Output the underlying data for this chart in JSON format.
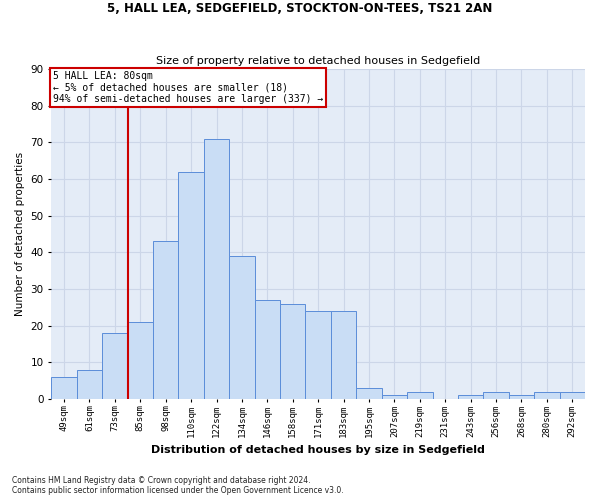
{
  "title1": "5, HALL LEA, SEDGEFIELD, STOCKTON-ON-TEES, TS21 2AN",
  "title2": "Size of property relative to detached houses in Sedgefield",
  "xlabel": "Distribution of detached houses by size in Sedgefield",
  "ylabel": "Number of detached properties",
  "bar_labels": [
    "49sqm",
    "61sqm",
    "73sqm",
    "85sqm",
    "98sqm",
    "110sqm",
    "122sqm",
    "134sqm",
    "146sqm",
    "158sqm",
    "171sqm",
    "183sqm",
    "195sqm",
    "207sqm",
    "219sqm",
    "231sqm",
    "243sqm",
    "256sqm",
    "268sqm",
    "280sqm",
    "292sqm"
  ],
  "bar_values": [
    6,
    8,
    18,
    21,
    43,
    62,
    71,
    39,
    27,
    26,
    24,
    24,
    3,
    1,
    2,
    0,
    1,
    2,
    1,
    2,
    2
  ],
  "bar_color": "#c9ddf5",
  "bar_edge_color": "#5b8dd9",
  "grid_color": "#ccd6e8",
  "bg_color": "#e4ecf7",
  "vline_color": "#cc0000",
  "vline_x_index": 2.5,
  "annotation_text": "5 HALL LEA: 80sqm\n← 5% of detached houses are smaller (18)\n94% of semi-detached houses are larger (337) →",
  "annotation_box_color": "#ffffff",
  "annotation_box_edge": "#cc0000",
  "footnote": "Contains HM Land Registry data © Crown copyright and database right 2024.\nContains public sector information licensed under the Open Government Licence v3.0.",
  "ylim": [
    0,
    90
  ],
  "yticks": [
    0,
    10,
    20,
    30,
    40,
    50,
    60,
    70,
    80,
    90
  ]
}
